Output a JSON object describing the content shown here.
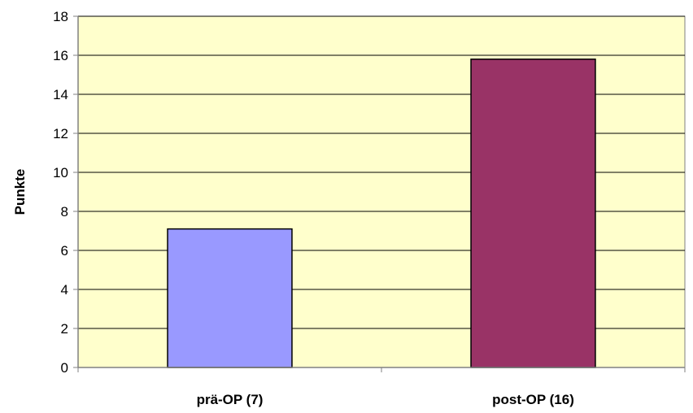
{
  "chart_data": {
    "type": "bar",
    "categories": [
      "prä-OP (7)",
      "post-OP (16)"
    ],
    "values": [
      7.1,
      15.8
    ],
    "colors": [
      "#9999ff",
      "#993366"
    ],
    "xlabel": "",
    "ylabel": "Punkte",
    "ylim": [
      0,
      18
    ],
    "yticks": [
      0,
      2,
      4,
      6,
      8,
      10,
      12,
      14,
      16,
      18
    ],
    "grid": true,
    "plot_background": "#ffffcc",
    "legend": "none"
  }
}
